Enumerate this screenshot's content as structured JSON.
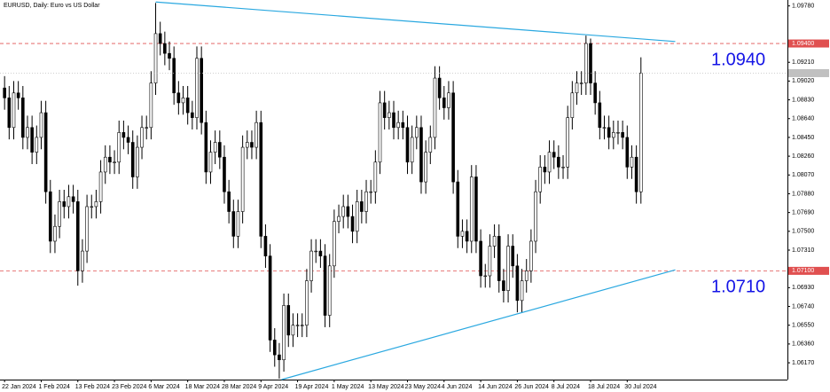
{
  "chart_data": {
    "type": "candlestick",
    "title": "EURUSD, Daily:  Euro vs US Dollar",
    "categories": [
      "22 Jan 2024",
      null,
      null,
      null,
      null,
      null,
      null,
      null,
      "1 Feb 2024",
      null,
      null,
      null,
      null,
      null,
      null,
      null,
      "13 Feb 2024",
      null,
      null,
      null,
      null,
      null,
      null,
      null,
      "23 Feb 2024",
      null,
      null,
      null,
      null,
      null,
      null,
      null,
      "6 Mar 2024",
      null,
      null,
      null,
      null,
      null,
      null,
      null,
      "18 Mar 2024",
      null,
      null,
      null,
      null,
      null,
      null,
      null,
      "28 Mar 2024",
      null,
      null,
      null,
      null,
      null,
      null,
      null,
      "9 Apr 2024",
      null,
      null,
      null,
      null,
      null,
      null,
      null,
      "19 Apr 2024",
      null,
      null,
      null,
      null,
      null,
      null,
      null,
      "1 May 2024",
      null,
      null,
      null,
      null,
      null,
      null,
      null,
      "13 May 2024",
      null,
      null,
      null,
      null,
      null,
      null,
      null,
      "23 May 2024",
      null,
      null,
      null,
      null,
      null,
      null,
      null,
      "4 Jun 2024",
      null,
      null,
      null,
      null,
      null,
      null,
      null,
      "14 Jun 2024",
      null,
      null,
      null,
      null,
      null,
      null,
      null,
      "26 Jun 2024",
      null,
      null,
      null,
      null,
      null,
      null,
      null,
      "8 Jul 2024",
      null,
      null,
      null,
      null,
      null,
      null,
      null,
      "18 Jul 2024",
      null,
      null,
      null,
      null,
      null,
      null,
      null,
      "30 Jul 2024",
      null,
      null,
      null
    ],
    "open": [
      1.0895,
      1.0885,
      1.0855,
      1.089,
      1.0885,
      1.0845,
      1.0855,
      1.083,
      1.0845,
      1.087,
      1.079,
      1.074,
      1.0755,
      1.078,
      1.0775,
      1.0785,
      1.078,
      1.071,
      1.073,
      1.0775,
      1.0775,
      1.078,
      1.081,
      1.0825,
      1.082,
      1.082,
      1.085,
      1.0845,
      1.084,
      1.0805,
      1.0835,
      1.0855,
      1.0855,
      1.09,
      1.095,
      1.094,
      1.093,
      1.0925,
      1.089,
      1.088,
      1.0885,
      1.087,
      1.0865,
      1.0925,
      1.086,
      1.081,
      1.083,
      1.084,
      1.0825,
      1.079,
      1.077,
      1.0745,
      1.077,
      1.0835,
      1.084,
      1.0835,
      1.086,
      1.0745,
      1.0725,
      1.064,
      1.0625,
      1.062,
      1.0675,
      1.0645,
      1.0655,
      1.0655,
      1.0655,
      1.07,
      1.073,
      1.073,
      1.0725,
      1.0665,
      1.0715,
      1.076,
      1.0765,
      1.0775,
      1.0765,
      1.075,
      1.078,
      1.077,
      1.079,
      1.079,
      1.082,
      1.088,
      1.0865,
      1.087,
      1.0855,
      1.086,
      1.0855,
      1.082,
      1.0845,
      1.0855,
      1.08,
      1.083,
      1.0845,
      1.0905,
      1.0885,
      1.0875,
      1.089,
      1.08,
      1.0745,
      1.075,
      1.074,
      1.0805,
      1.074,
      1.0705,
      1.0705,
      1.0735,
      1.0745,
      1.07,
      1.069,
      1.0735,
      1.0715,
      1.068,
      1.07,
      1.071,
      1.074,
      1.079,
      1.0815,
      1.081,
      1.083,
      1.0825,
      1.0815,
      1.0815,
      1.0865,
      1.089,
      1.09,
      1.09,
      1.094,
      1.09,
      1.088,
      1.0855,
      1.0855,
      1.0845,
      1.085,
      1.085,
      1.0845,
      1.0815,
      1.0825,
      1.079
    ],
    "high": [
      1.0907,
      1.0897,
      1.0902,
      1.0902,
      1.0897,
      1.0867,
      1.0867,
      1.0857,
      1.0882,
      1.0882,
      1.0802,
      1.0767,
      1.0792,
      1.0792,
      1.0797,
      1.0797,
      1.0792,
      1.0742,
      1.0787,
      1.0787,
      1.0792,
      1.0822,
      1.0837,
      1.0837,
      1.0832,
      1.0862,
      1.0862,
      1.0857,
      1.0852,
      1.0847,
      1.0867,
      1.0867,
      1.0912,
      1.0981,
      1.0962,
      1.0952,
      1.0942,
      1.0937,
      1.0902,
      1.0897,
      1.0897,
      1.0882,
      1.0937,
      1.0937,
      1.0872,
      1.0842,
      1.0852,
      1.0852,
      1.0837,
      1.0802,
      1.0782,
      1.0782,
      1.0847,
      1.0852,
      1.0852,
      1.0872,
      1.0872,
      1.0757,
      1.0737,
      1.0652,
      1.0637,
      1.0687,
      1.0687,
      1.0667,
      1.0667,
      1.0667,
      1.0712,
      1.0742,
      1.0742,
      1.0742,
      1.0737,
      1.0727,
      1.0772,
      1.0777,
      1.0787,
      1.0787,
      1.0777,
      1.0792,
      1.0792,
      1.0802,
      1.0802,
      1.0832,
      1.0892,
      1.0892,
      1.0882,
      1.0882,
      1.0872,
      1.0872,
      1.0867,
      1.0857,
      1.0867,
      1.0867,
      1.0842,
      1.0857,
      1.0917,
      1.0917,
      1.0897,
      1.0902,
      1.0902,
      1.0812,
      1.0762,
      1.0762,
      1.0817,
      1.0817,
      1.0752,
      1.0717,
      1.0747,
      1.0757,
      1.0757,
      1.0712,
      1.0747,
      1.0747,
      1.0727,
      1.0712,
      1.0722,
      1.0752,
      1.0802,
      1.0827,
      1.0827,
      1.0842,
      1.0842,
      1.0837,
      1.0827,
      1.0877,
      1.0902,
      1.0912,
      1.0912,
      1.0948,
      1.0945,
      1.0912,
      1.0892,
      1.0867,
      1.0867,
      1.0862,
      1.0862,
      1.0862,
      1.0857,
      1.0837,
      1.0837,
      1.0926
    ],
    "low": [
      1.0873,
      1.0843,
      1.0843,
      1.0873,
      1.0833,
      1.0833,
      1.0818,
      1.0818,
      1.0833,
      1.0778,
      1.0728,
      1.0728,
      1.0743,
      1.0763,
      1.0763,
      1.0768,
      1.0695,
      1.0698,
      1.0718,
      1.0763,
      1.0763,
      1.0768,
      1.0798,
      1.0808,
      1.0808,
      1.0808,
      1.0833,
      1.0828,
      1.0793,
      1.0793,
      1.0823,
      1.0843,
      1.0843,
      1.0888,
      1.0928,
      1.0918,
      1.0913,
      1.0878,
      1.0868,
      1.0868,
      1.0858,
      1.0853,
      1.0853,
      1.0848,
      1.0798,
      1.0798,
      1.0818,
      1.0813,
      1.0778,
      1.0758,
      1.0733,
      1.0733,
      1.0758,
      1.0823,
      1.0823,
      1.0823,
      1.0733,
      1.0713,
      1.0628,
      1.0613,
      1.0601,
      1.0608,
      1.0633,
      1.0633,
      1.0643,
      1.0643,
      1.0643,
      1.0688,
      1.0718,
      1.0713,
      1.0653,
      1.0653,
      1.0703,
      1.0748,
      1.0753,
      1.0753,
      1.0738,
      1.0738,
      1.0758,
      1.0758,
      1.0778,
      1.0778,
      1.0808,
      1.0853,
      1.0853,
      1.0843,
      1.0843,
      1.0843,
      1.0808,
      1.0808,
      1.0833,
      1.0788,
      1.0788,
      1.0818,
      1.0833,
      1.0873,
      1.0863,
      1.0863,
      1.0788,
      1.0733,
      1.0733,
      1.0728,
      1.0728,
      1.0728,
      1.0693,
      1.0693,
      1.0693,
      1.0723,
      1.0688,
      1.0678,
      1.0678,
      1.0703,
      1.0668,
      1.0668,
      1.0688,
      1.0698,
      1.0728,
      1.0778,
      1.0798,
      1.0798,
      1.0813,
      1.0803,
      1.0803,
      1.0803,
      1.0853,
      1.0878,
      1.0888,
      1.0888,
      1.0888,
      1.0868,
      1.0843,
      1.0843,
      1.0833,
      1.0833,
      1.0838,
      1.0833,
      1.0803,
      1.0803,
      1.0778,
      1.0778
    ],
    "close": [
      1.0885,
      1.0855,
      1.089,
      1.0885,
      1.0845,
      1.0855,
      1.083,
      1.0845,
      1.087,
      1.079,
      1.074,
      1.0755,
      1.078,
      1.0775,
      1.0785,
      1.078,
      1.071,
      1.073,
      1.0775,
      1.0775,
      1.078,
      1.081,
      1.0825,
      1.082,
      1.082,
      1.085,
      1.0845,
      1.084,
      1.0805,
      1.0835,
      1.0855,
      1.0855,
      1.09,
      1.095,
      1.094,
      1.093,
      1.0925,
      1.089,
      1.088,
      1.0885,
      1.087,
      1.0865,
      1.0925,
      1.086,
      1.081,
      1.083,
      1.084,
      1.0825,
      1.079,
      1.077,
      1.0745,
      1.077,
      1.0835,
      1.084,
      1.0835,
      1.086,
      1.0745,
      1.0725,
      1.064,
      1.0625,
      1.062,
      1.0675,
      1.0645,
      1.0655,
      1.0655,
      1.0655,
      1.07,
      1.073,
      1.073,
      1.0725,
      1.0665,
      1.0715,
      1.076,
      1.0765,
      1.0775,
      1.0765,
      1.075,
      1.078,
      1.077,
      1.079,
      1.079,
      1.082,
      1.088,
      1.0865,
      1.087,
      1.0855,
      1.086,
      1.0855,
      1.082,
      1.0845,
      1.0855,
      1.08,
      1.083,
      1.0845,
      1.0905,
      1.0885,
      1.0875,
      1.089,
      1.08,
      1.0745,
      1.075,
      1.074,
      1.0805,
      1.074,
      1.0705,
      1.0705,
      1.0735,
      1.0745,
      1.07,
      1.069,
      1.0735,
      1.0715,
      1.068,
      1.07,
      1.071,
      1.074,
      1.079,
      1.0815,
      1.081,
      1.083,
      1.0825,
      1.0815,
      1.0815,
      1.0865,
      1.089,
      1.09,
      1.09,
      1.094,
      1.09,
      1.088,
      1.0855,
      1.0855,
      1.0845,
      1.085,
      1.085,
      1.0845,
      1.0815,
      1.0825,
      1.079,
      1.091
    ],
    "up_color": "#ffffff",
    "down_color": "#000000",
    "xlim": [
      -1,
      171
    ],
    "ylim": [
      1.06,
      1.0984
    ],
    "yticks": [
      {
        "value": 1.0978,
        "label": "1.09780"
      },
      {
        "value": 1.0921,
        "label": "1.09210"
      },
      {
        "value": 1.0902,
        "label": "1.09020"
      },
      {
        "value": 1.0883,
        "label": "1.08830"
      },
      {
        "value": 1.0864,
        "label": "1.08640"
      },
      {
        "value": 1.0845,
        "label": "1.08450"
      },
      {
        "value": 1.0826,
        "label": "1.08260"
      },
      {
        "value": 1.0807,
        "label": "1.08070"
      },
      {
        "value": 1.0788,
        "label": "1.07880"
      },
      {
        "value": 1.0769,
        "label": "1.07690"
      },
      {
        "value": 1.075,
        "label": "1.07500"
      },
      {
        "value": 1.0731,
        "label": "1.07310"
      },
      {
        "value": 1.0693,
        "label": "1.06930"
      },
      {
        "value": 1.0674,
        "label": "1.06740"
      },
      {
        "value": 1.0655,
        "label": "1.06550"
      },
      {
        "value": 1.0636,
        "label": "1.06360"
      },
      {
        "value": 1.0617,
        "label": "1.06170"
      }
    ],
    "levels": [
      {
        "value": 1.094,
        "label": "1.0940",
        "axis_label": "1.09400"
      },
      {
        "value": 1.071,
        "label": "1.0710",
        "axis_label": "1.07100"
      }
    ],
    "level_color": "#e05050",
    "level_label_color": "#1414e6",
    "trendlines": [
      {
        "x": [
          33,
          146.5
        ],
        "y": [
          1.0982,
          1.0942
        ]
      },
      {
        "x": [
          60.5,
          146.5
        ],
        "y": [
          1.06,
          1.0711
        ]
      }
    ],
    "trendline_color": "#2aa8e0"
  }
}
